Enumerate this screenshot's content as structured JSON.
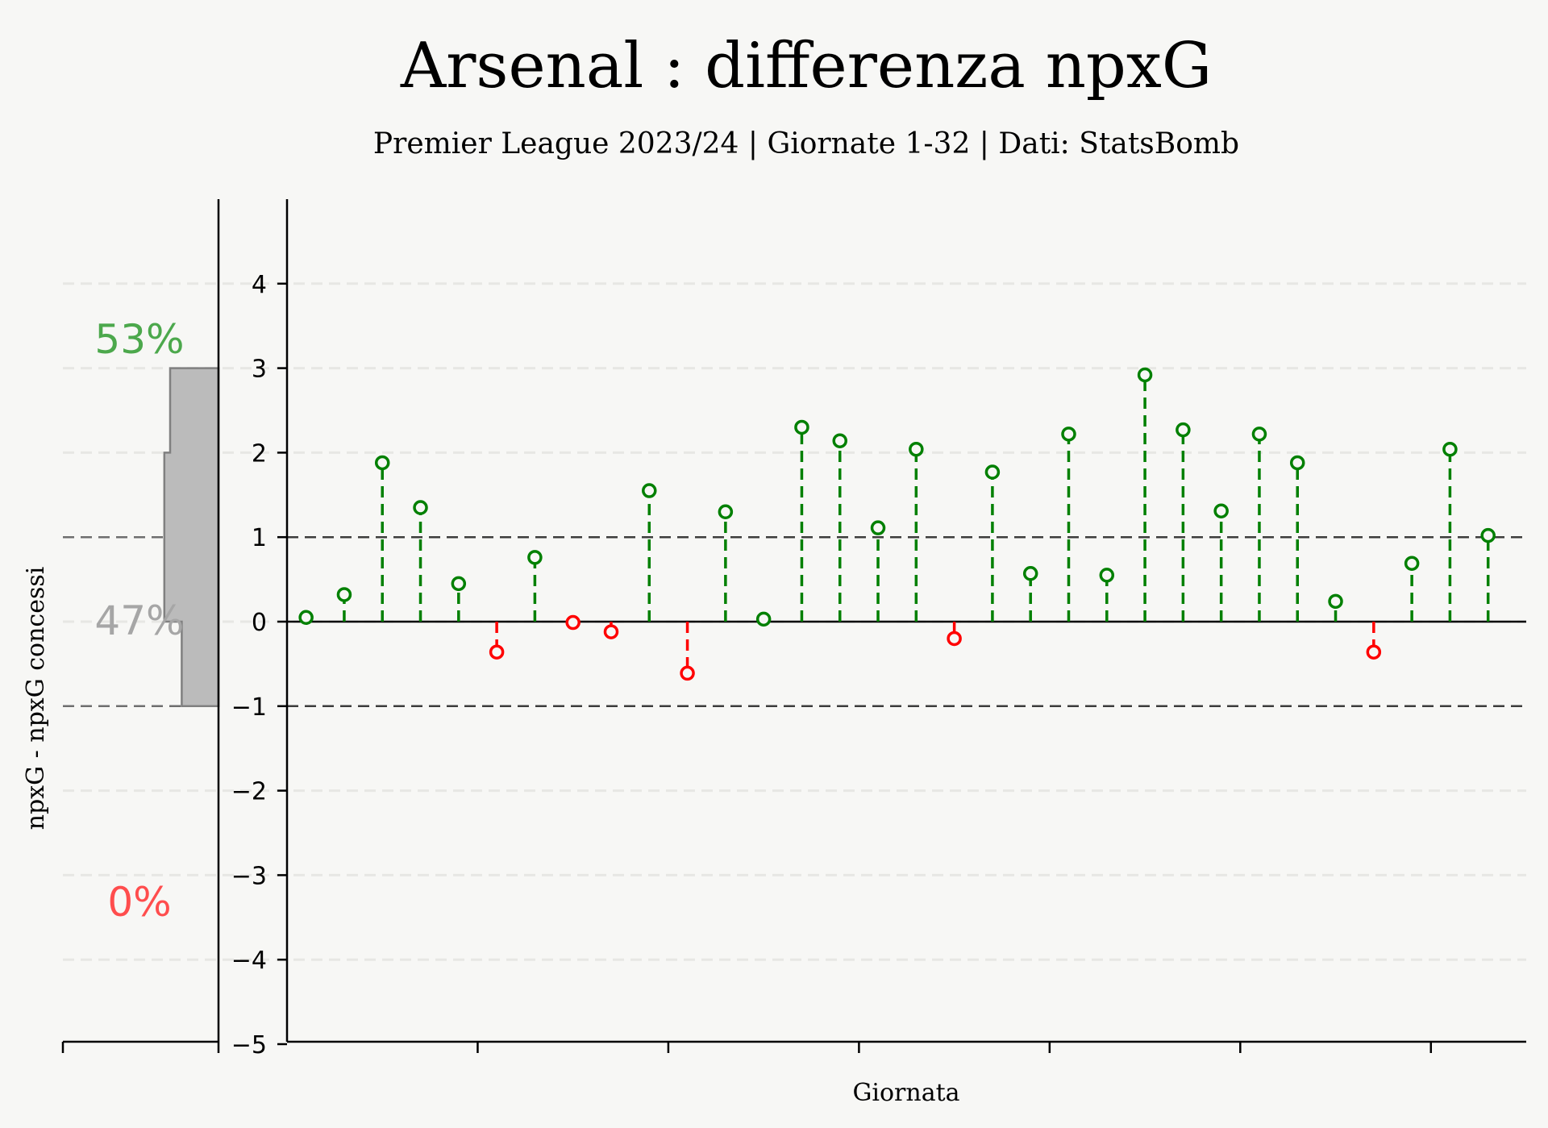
{
  "chart_data": {
    "type": "stem",
    "title": "Arsenal : differenza npxG",
    "subtitle": "Premier League 2023/24 | Giornate 1-32 | Dati: StatsBomb",
    "xlabel": "Giornata",
    "ylabel": "npxG - npxG concessi",
    "ylim": [
      -5,
      5
    ],
    "yticks": [
      4,
      3,
      2,
      1,
      0,
      -1,
      -2,
      -3,
      -4,
      -5
    ],
    "ytick_labels": [
      "4",
      "3",
      "2",
      "1",
      "0",
      "−1",
      "−2",
      "−3",
      "−4",
      "−5"
    ],
    "xlim": [
      0.5,
      33
    ],
    "x": [
      1,
      2,
      3,
      4,
      5,
      6,
      7,
      8,
      9,
      10,
      11,
      12,
      13,
      14,
      15,
      16,
      17,
      18,
      19,
      20,
      21,
      22,
      23,
      24,
      25,
      26,
      27,
      28,
      29,
      30,
      31,
      32
    ],
    "values": [
      0.05,
      0.32,
      1.88,
      1.35,
      0.45,
      -0.36,
      0.76,
      -0.01,
      -0.12,
      1.55,
      -0.61,
      1.3,
      0.03,
      2.3,
      2.14,
      1.11,
      2.04,
      -0.2,
      1.77,
      0.57,
      2.22,
      0.55,
      2.92,
      2.27,
      1.31,
      2.22,
      1.88,
      0.24,
      -0.36,
      0.69,
      2.04,
      1.02
    ],
    "reference_lines": [
      1,
      -1
    ],
    "positive_color": "#008000",
    "negative_color": "#ff0000",
    "distribution": {
      "bins": [
        {
          "from": 2,
          "to": 3,
          "value": 0.25
        },
        {
          "from": 1,
          "to": 2,
          "value": 0.28
        },
        {
          "from": 0,
          "to": 1,
          "value": 0.28
        },
        {
          "from": -1,
          "to": 0,
          "value": 0.19
        }
      ],
      "fill_color": "#bbbbbb",
      "edge_color": "#808080"
    },
    "shares": {
      "above": "53%",
      "middle": "47%",
      "below": "0%",
      "above_color": "#4ca84c",
      "middle_color": "#a6a6a6",
      "below_color": "#ff4d4d"
    }
  }
}
